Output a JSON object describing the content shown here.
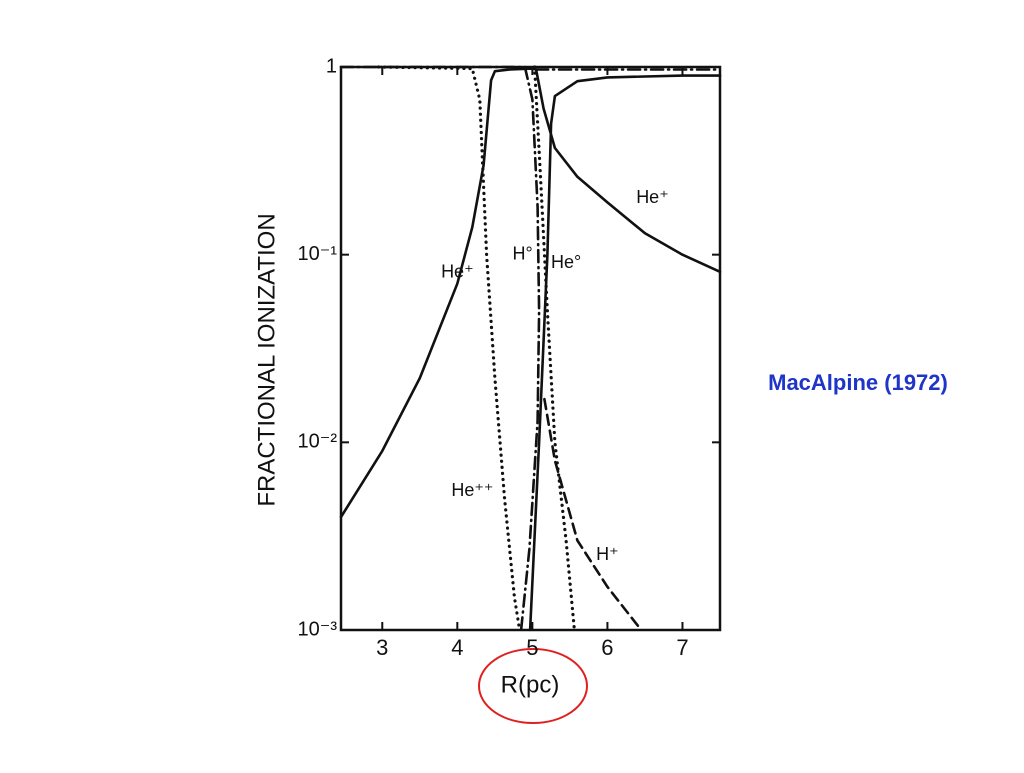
{
  "chart_data": {
    "type": "line",
    "xlabel": "R(pc)",
    "ylabel": "FRACTIONAL  IONIZATION",
    "xlim": [
      2.45,
      7.5
    ],
    "xticks": [
      3,
      4,
      5,
      6,
      7
    ],
    "ylim": [
      0.001,
      1
    ],
    "yscale": "log",
    "yticks": [
      {
        "value": 0.001,
        "label": "10⁻³"
      },
      {
        "value": 0.01,
        "label": "10⁻²"
      },
      {
        "value": 0.1,
        "label": "10⁻¹"
      },
      1
    ],
    "series": [
      {
        "color": "#111111",
        "dash": "solid",
        "x": [
          2.45,
          3,
          3.5,
          4,
          4.2,
          4.35,
          4.45,
          4.5,
          4.7,
          5.0,
          5.05,
          5.15,
          5.3,
          5.6,
          6,
          6.5,
          7,
          7.5
        ],
        "values": [
          0.004,
          0.009,
          0.022,
          0.07,
          0.14,
          0.3,
          0.85,
          0.95,
          0.97,
          0.98,
          0.97,
          0.6,
          0.37,
          0.26,
          0.19,
          0.13,
          0.1,
          0.081
        ]
      },
      {
        "color": "#111111",
        "dash": "solid",
        "x": [
          4.97,
          5.09,
          5.2,
          5.25,
          5.3,
          5.6,
          6,
          7,
          7.5
        ],
        "values": [
          0.001,
          0.01,
          0.1,
          0.5,
          0.7,
          0.84,
          0.88,
          0.9,
          0.9
        ]
      },
      {
        "color": "#111111",
        "dash": "dotted",
        "x": [
          2.95,
          4.2,
          4.3,
          4.39,
          4.5,
          4.63,
          4.76,
          4.83
        ],
        "values": [
          1,
          0.98,
          0.67,
          0.1,
          0.022,
          0.005,
          0.0015,
          0.001
        ]
      },
      {
        "color": "#111111",
        "dash": "dotted",
        "x": [
          5.03,
          5.1,
          5.2,
          5.3,
          5.45,
          5.56
        ],
        "values": [
          1,
          0.3,
          0.05,
          0.01,
          0.003,
          0.001
        ]
      },
      {
        "color": "#111111",
        "dash": "dashdot",
        "x": [
          2.45,
          4.9,
          5.0,
          5.07,
          5.09,
          5.07,
          4.96,
          4.85
        ],
        "values": [
          1,
          1,
          0.67,
          0.18,
          0.05,
          0.013,
          0.0027,
          0.001
        ]
      },
      {
        "color": "#111111",
        "dash": "dashdot",
        "x": [
          5.05,
          7.5
        ],
        "values": [
          0.97,
          0.97
        ]
      },
      {
        "color": "#111111",
        "dash": "dashed",
        "x": [
          5.16,
          5.3,
          5.6,
          6.0,
          6.45
        ],
        "values": [
          0.017,
          0.008,
          0.003,
          0.0017,
          0.001
        ]
      }
    ],
    "annotations": [
      {
        "text": "He⁺",
        "x": 4.0,
        "y": 0.08
      },
      {
        "text": "H°",
        "x": 4.87,
        "y": 0.1
      },
      {
        "text": "He°",
        "x": 5.45,
        "y": 0.09
      },
      {
        "text": "He⁺",
        "x": 6.6,
        "y": 0.2
      },
      {
        "text": "He⁺⁺",
        "x": 4.2,
        "y": 0.0055
      },
      {
        "text": "H⁺",
        "x": 6.0,
        "y": 0.0025
      }
    ],
    "source": "MacAlpine (1972)"
  }
}
